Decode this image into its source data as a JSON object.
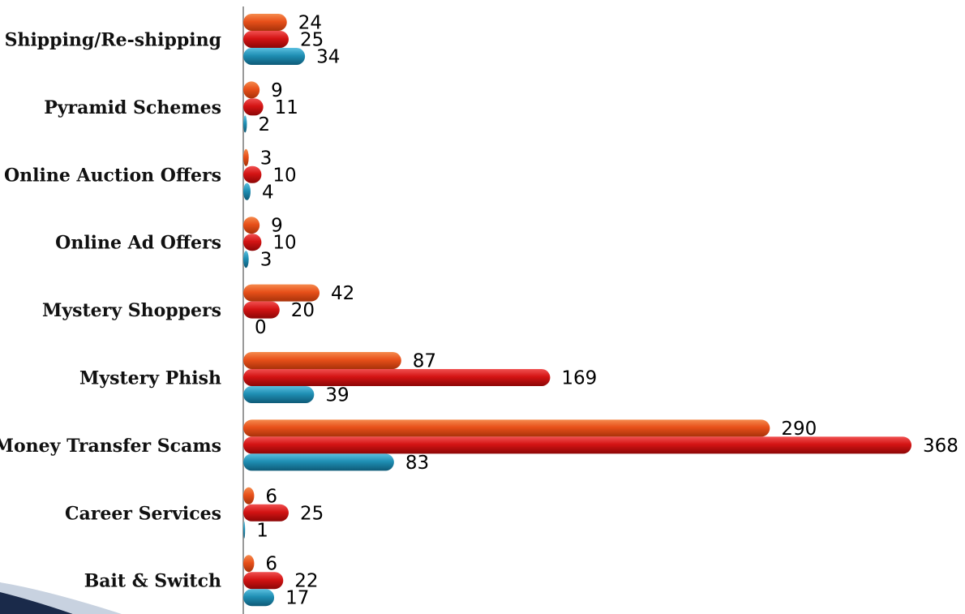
{
  "chart_data": {
    "type": "bar",
    "orientation": "horizontal",
    "categories": [
      "Shipping/Re-shipping",
      "Pyramid Schemes",
      "Online Auction Offers",
      "Online Ad Offers",
      "Mystery Shoppers",
      "Mystery Phish",
      "Money Transfer Scams",
      "Career Services",
      "Bait & Switch"
    ],
    "series": [
      {
        "color": "#e8501a",
        "values": [
          24,
          9,
          3,
          9,
          42,
          87,
          290,
          6,
          6
        ]
      },
      {
        "color": "#d41414",
        "values": [
          25,
          11,
          10,
          10,
          20,
          169,
          368,
          25,
          22
        ]
      },
      {
        "color": "#1f8fb4",
        "values": [
          34,
          2,
          4,
          3,
          0,
          39,
          83,
          1,
          17
        ]
      }
    ],
    "xlim": [
      0,
      368
    ],
    "grid": false,
    "legend": "none",
    "data_labels": true
  }
}
